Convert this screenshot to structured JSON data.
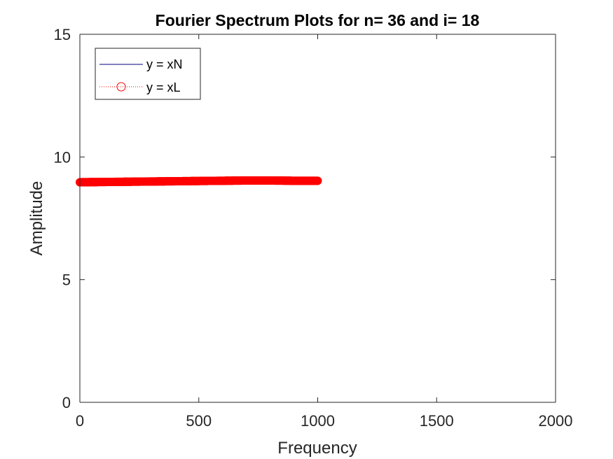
{
  "chart_data": {
    "type": "line",
    "title": "Fourier Spectrum Plots for n= 36 and i= 18",
    "xlabel": "Frequency",
    "ylabel": "Amplitude",
    "xlim": [
      0,
      2000
    ],
    "ylim": [
      0,
      15
    ],
    "x_ticks": [
      0,
      500,
      1000,
      1500,
      2000
    ],
    "y_ticks": [
      0,
      5,
      10,
      15
    ],
    "x_tick_labels": [
      "0",
      "500",
      "1000",
      "1500",
      "2000"
    ],
    "y_tick_labels": [
      "0",
      "5",
      "10",
      "15"
    ],
    "grid": false,
    "legend_position": "top-left",
    "series": [
      {
        "name": "y = xN",
        "color": "#00007f",
        "style": "solid",
        "marker": "none",
        "x": [
          0,
          100,
          200,
          300,
          400,
          500,
          600,
          700,
          800,
          900,
          1000
        ],
        "y": [
          8.97,
          8.98,
          8.99,
          9.0,
          9.01,
          9.02,
          9.03,
          9.04,
          9.04,
          9.03,
          9.03
        ]
      },
      {
        "name": "y = xL",
        "color": "#ff0000",
        "style": "dotted",
        "marker": "circle",
        "x": [
          0,
          100,
          200,
          300,
          400,
          500,
          600,
          700,
          800,
          900,
          1000
        ],
        "y": [
          8.97,
          8.98,
          8.99,
          9.0,
          9.01,
          9.02,
          9.03,
          9.04,
          9.04,
          9.03,
          9.03
        ]
      }
    ]
  }
}
